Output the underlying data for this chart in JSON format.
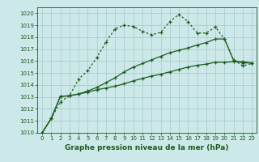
{
  "xlabel": "Graphe pression niveau de la mer (hPa)",
  "xlim": [
    -0.5,
    23.5
  ],
  "ylim": [
    1010,
    1020.5
  ],
  "yticks": [
    1010,
    1011,
    1012,
    1013,
    1014,
    1015,
    1016,
    1017,
    1018,
    1019,
    1020
  ],
  "xticks": [
    0,
    1,
    2,
    3,
    4,
    5,
    6,
    7,
    8,
    9,
    10,
    11,
    12,
    13,
    14,
    15,
    16,
    17,
    18,
    19,
    20,
    21,
    22,
    23
  ],
  "bg_color": "#cce8e8",
  "grid_color": "#aacece",
  "line_color": "#1e5c1e",
  "series1_x": [
    0,
    1,
    2,
    3,
    4,
    5,
    6,
    7,
    8,
    9,
    10,
    11,
    12,
    13,
    14,
    15,
    16,
    17,
    18,
    19,
    20,
    21,
    22,
    23
  ],
  "series1_y": [
    1010.0,
    1011.2,
    1012.6,
    1013.1,
    1014.5,
    1015.2,
    1016.3,
    1017.6,
    1018.7,
    1019.0,
    1018.9,
    1018.5,
    1018.2,
    1018.4,
    1019.3,
    1019.9,
    1019.3,
    1018.35,
    1018.35,
    1018.85,
    1017.85,
    1016.1,
    1015.6,
    1015.8
  ],
  "series2_x": [
    0,
    1,
    2,
    3,
    4,
    5,
    6,
    7,
    8,
    9,
    10,
    11,
    12,
    13,
    14,
    15,
    16,
    17,
    18,
    19,
    20,
    21,
    22,
    23
  ],
  "series2_y": [
    1010.0,
    1011.2,
    1013.05,
    1013.1,
    1013.25,
    1013.4,
    1013.6,
    1013.75,
    1013.9,
    1014.1,
    1014.35,
    1014.55,
    1014.75,
    1014.9,
    1015.1,
    1015.3,
    1015.5,
    1015.65,
    1015.75,
    1015.9,
    1015.9,
    1015.95,
    1015.95,
    1015.85
  ],
  "series3_x": [
    0,
    1,
    2,
    3,
    4,
    5,
    6,
    7,
    8,
    9,
    10,
    11,
    12,
    13,
    14,
    15,
    16,
    17,
    18,
    19,
    20,
    21,
    22,
    23
  ],
  "series3_y": [
    1010.0,
    1011.2,
    1013.05,
    1013.1,
    1013.25,
    1013.5,
    1013.8,
    1014.2,
    1014.6,
    1015.1,
    1015.5,
    1015.8,
    1016.1,
    1016.4,
    1016.7,
    1016.9,
    1017.1,
    1017.35,
    1017.55,
    1017.85,
    1017.85,
    1016.05,
    1015.85,
    1015.85
  ],
  "tick_fontsize": 5.0,
  "xlabel_fontsize": 6.5
}
